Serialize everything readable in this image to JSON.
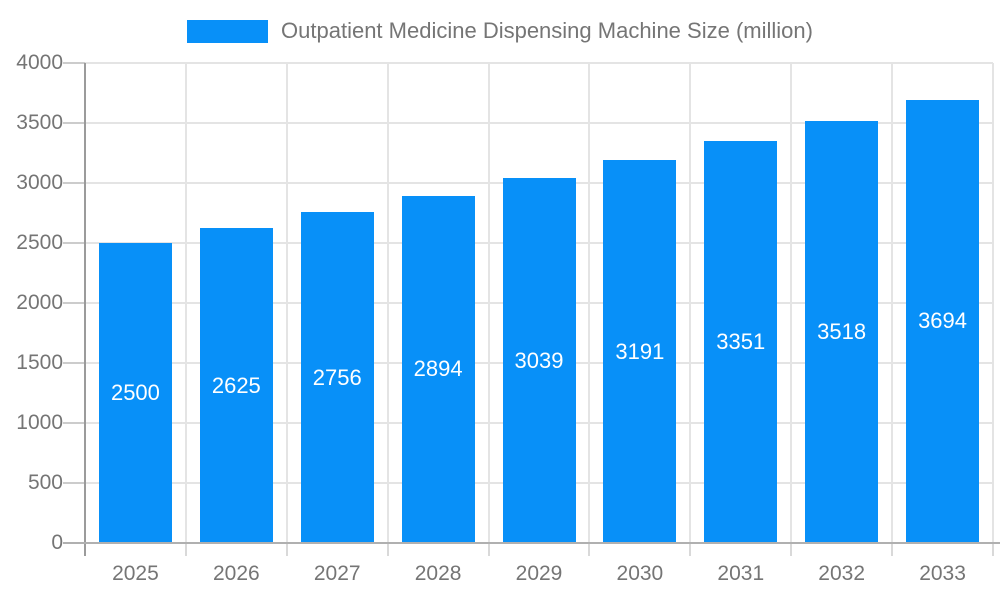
{
  "chart_data": {
    "type": "bar",
    "title": "Outpatient Medicine Dispensing Machine Size (million)",
    "legend_label": "Outpatient Medicine Dispensing Machine Size (million)",
    "legend_position": "top-center",
    "categories": [
      "2025",
      "2026",
      "2027",
      "2028",
      "2029",
      "2030",
      "2031",
      "2032",
      "2033"
    ],
    "values": [
      2500,
      2625,
      2756,
      2894,
      3039,
      3191,
      3351,
      3518,
      3694
    ],
    "series": [
      {
        "name": "Outpatient Medicine Dispensing Machine Size (million)",
        "values": [
          2500,
          2625,
          2756,
          2894,
          3039,
          3191,
          3351,
          3518,
          3694
        ]
      }
    ],
    "xlabel": "",
    "ylabel": "",
    "ylim": [
      0,
      4000
    ],
    "ytick_interval": 500,
    "ytick_labels": [
      "0",
      "500",
      "1000",
      "1500",
      "2000",
      "2500",
      "3000",
      "3500",
      "4000"
    ],
    "grid": true,
    "bar_label_position": "inside-center",
    "colors": {
      "bar": "#0890f8",
      "bar_value_label": "#ffffff",
      "axis_text": "#757575",
      "legend_text": "#757575",
      "gridline": "#e4e4e4",
      "y_axis_line": "#9b9b9b",
      "x_axis_line": "#b0b0b0",
      "background": "#ffffff"
    }
  }
}
